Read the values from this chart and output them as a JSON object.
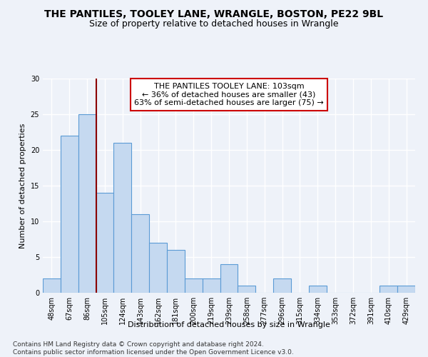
{
  "title": "THE PANTILES, TOOLEY LANE, WRANGLE, BOSTON, PE22 9BL",
  "subtitle": "Size of property relative to detached houses in Wrangle",
  "xlabel": "Distribution of detached houses by size in Wrangle",
  "ylabel": "Number of detached properties",
  "categories": [
    "48sqm",
    "67sqm",
    "86sqm",
    "105sqm",
    "124sqm",
    "143sqm",
    "162sqm",
    "181sqm",
    "200sqm",
    "219sqm",
    "239sqm",
    "258sqm",
    "277sqm",
    "296sqm",
    "315sqm",
    "334sqm",
    "353sqm",
    "372sqm",
    "391sqm",
    "410sqm",
    "429sqm"
  ],
  "values": [
    2,
    22,
    25,
    14,
    21,
    11,
    7,
    6,
    2,
    2,
    4,
    1,
    0,
    2,
    0,
    1,
    0,
    0,
    0,
    1,
    1
  ],
  "bar_color": "#c5d9f0",
  "bar_edge_color": "#5b9bd5",
  "marker_label_line1": "THE PANTILES TOOLEY LANE: 103sqm",
  "marker_label_line2": "← 36% of detached houses are smaller (43)",
  "marker_label_line3": "63% of semi-detached houses are larger (75) →",
  "vline_color": "#8b0000",
  "vline_x_index": 2.5,
  "ylim": [
    0,
    30
  ],
  "yticks": [
    0,
    5,
    10,
    15,
    20,
    25,
    30
  ],
  "footnote": "Contains HM Land Registry data © Crown copyright and database right 2024.\nContains public sector information licensed under the Open Government Licence v3.0.",
  "background_color": "#eef2f9",
  "grid_color": "#ffffff",
  "title_fontsize": 10,
  "subtitle_fontsize": 9,
  "axis_label_fontsize": 8,
  "tick_fontsize": 7,
  "footnote_fontsize": 6.5,
  "annotation_fontsize": 8
}
